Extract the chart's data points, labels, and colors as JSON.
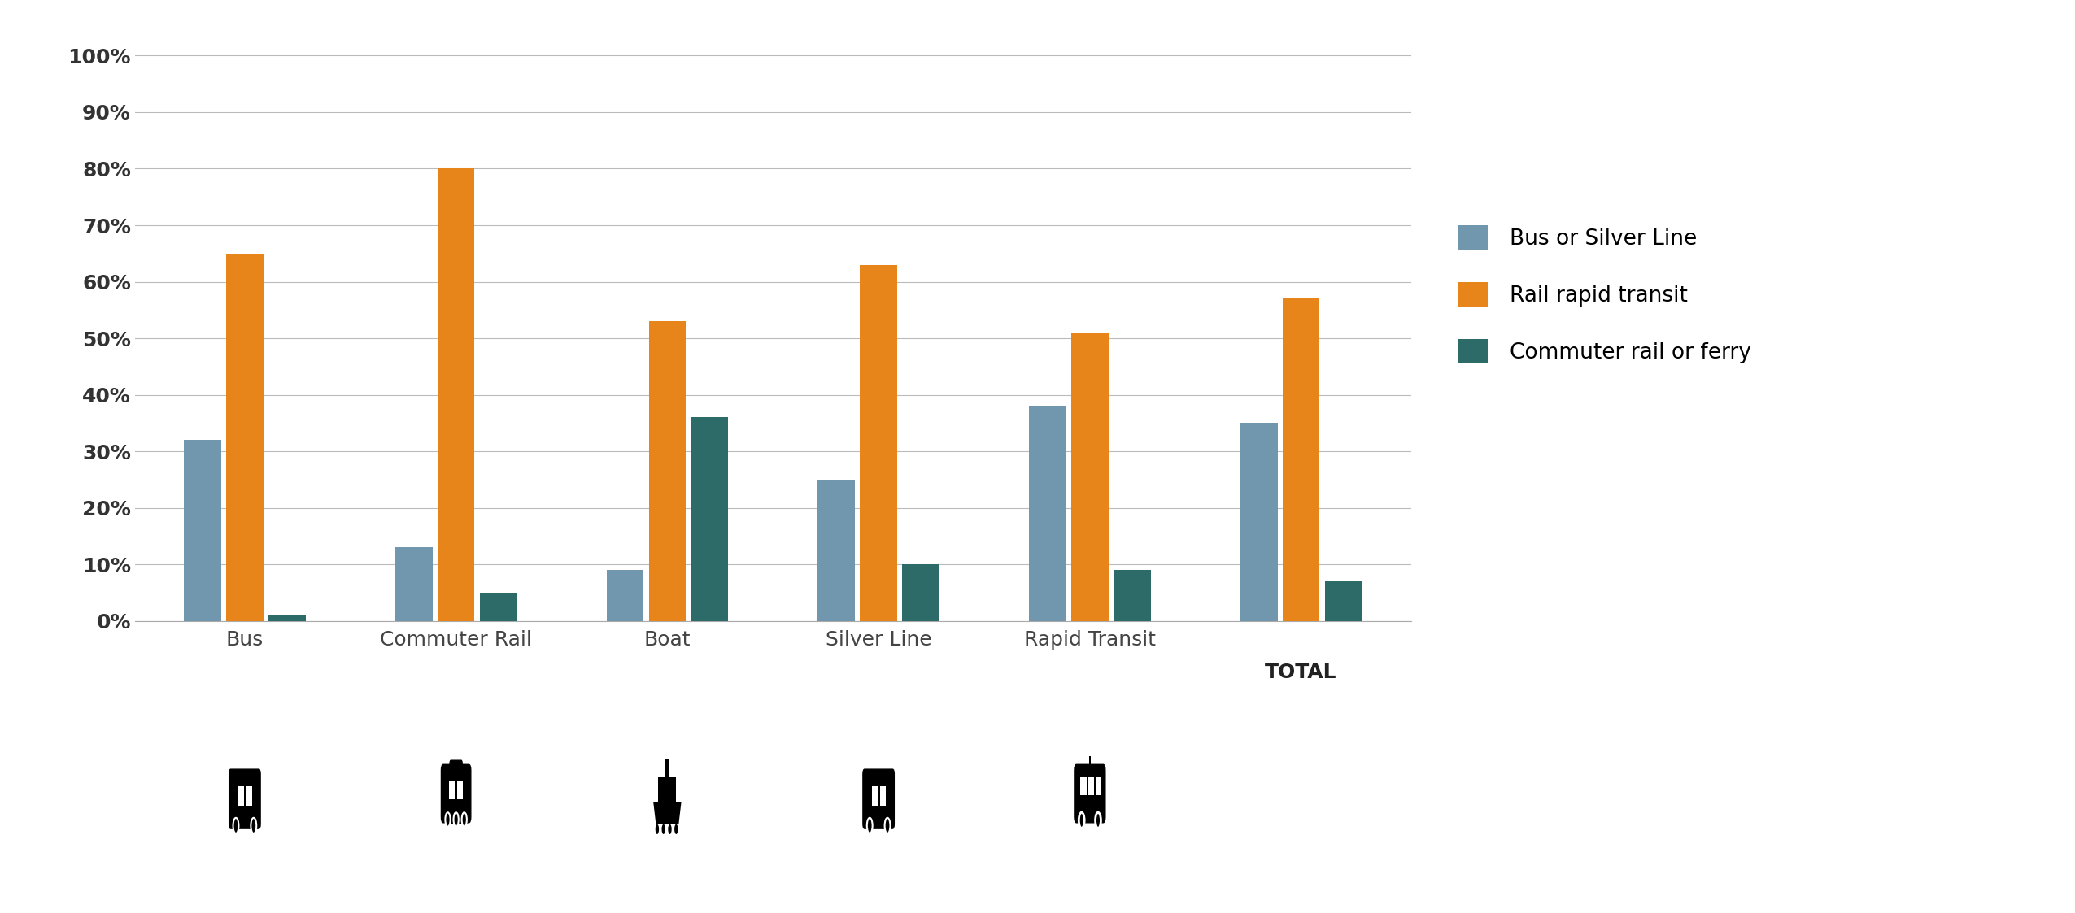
{
  "categories": [
    "Bus",
    "Commuter Rail",
    "Boat",
    "Silver Line",
    "Rapid Transit",
    "TOTAL"
  ],
  "series": {
    "Bus or Silver Line": [
      0.32,
      0.13,
      0.09,
      0.25,
      0.38,
      0.35
    ],
    "Rail rapid transit": [
      0.65,
      0.8,
      0.53,
      0.63,
      0.51,
      0.57
    ],
    "Commuter rail or ferry": [
      0.01,
      0.05,
      0.36,
      0.1,
      0.09,
      0.07
    ]
  },
  "colors": {
    "Bus or Silver Line": "#7097ad",
    "Rail rapid transit": "#e8851a",
    "Commuter rail or ferry": "#2d6b68"
  },
  "ylim": [
    0,
    1.05
  ],
  "yticks": [
    0,
    0.1,
    0.2,
    0.3,
    0.4,
    0.5,
    0.6,
    0.7,
    0.8,
    0.9,
    1.0
  ],
  "ytick_labels": [
    "0%",
    "10%",
    "20%",
    "30%",
    "40%",
    "50%",
    "60%",
    "70%",
    "80%",
    "90%",
    "100%"
  ],
  "background_color": "#ffffff",
  "grid_color": "#bbbbbb",
  "legend_labels": [
    "Bus or Silver Line",
    "Rail rapid transit",
    "Commuter rail or ferry"
  ],
  "bar_width": 0.2,
  "figwidth": 25.51,
  "figheight": 11.23
}
